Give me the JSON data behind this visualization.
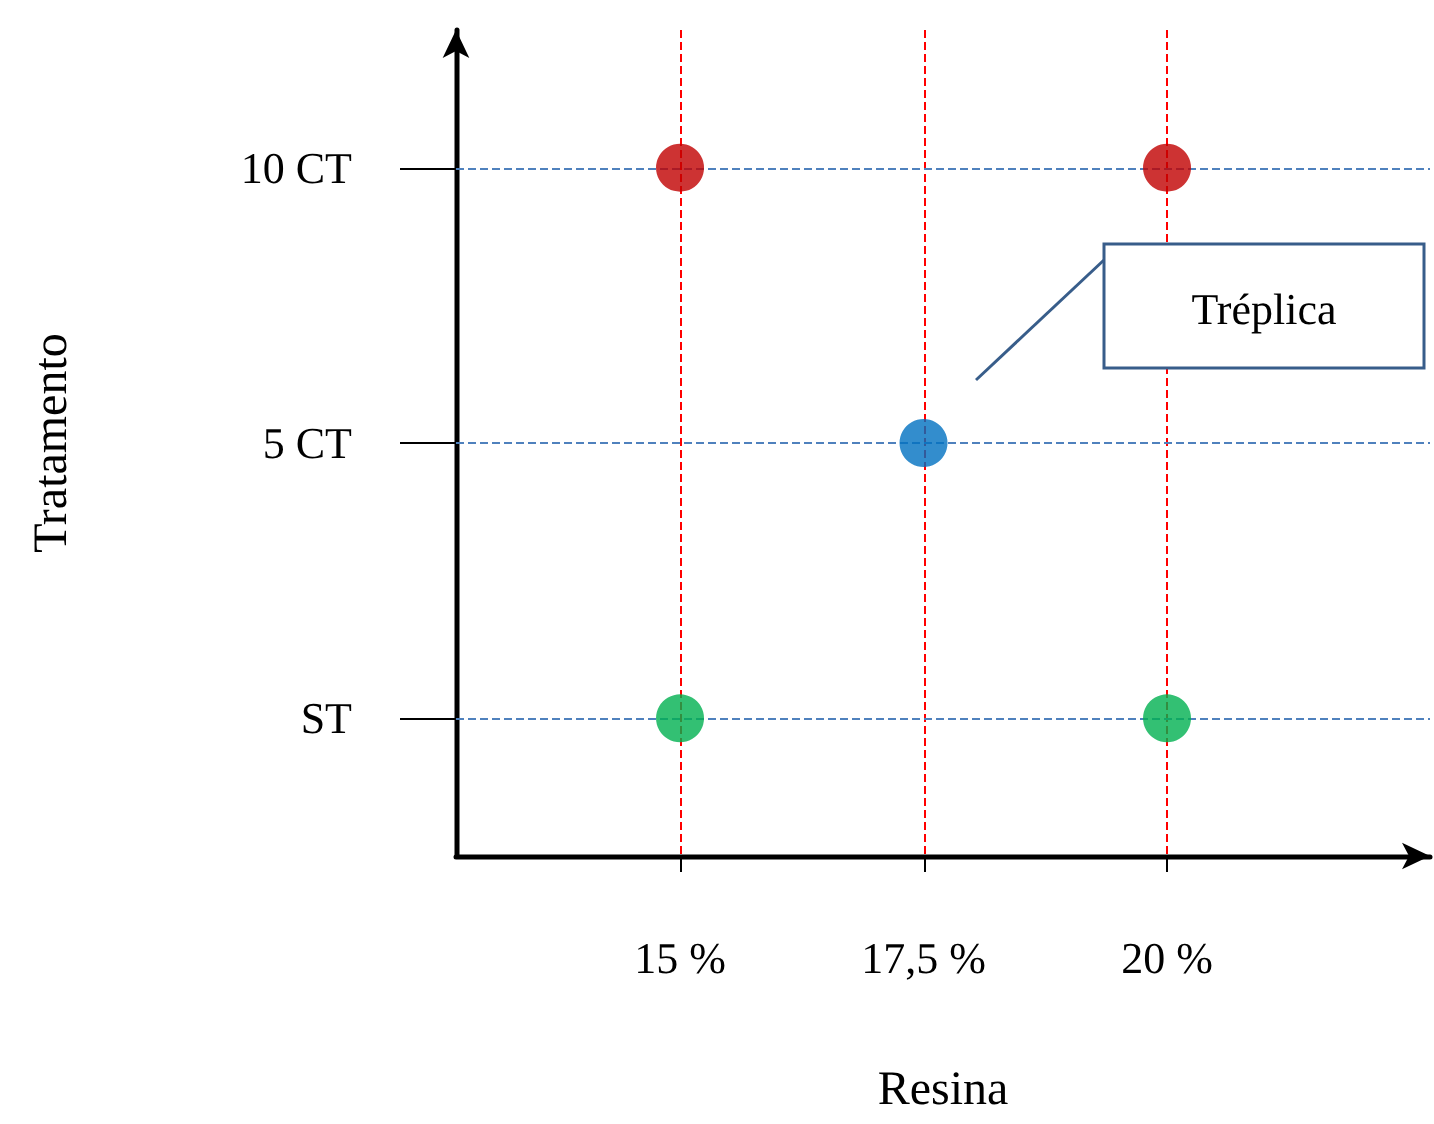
{
  "chart_data": {
    "type": "scatter",
    "orientation": "horizontal",
    "xlabel": "Resina",
    "ylabel": "Tratamento",
    "categories": [
      "10 CT",
      "5 CT",
      "ST"
    ],
    "xlim": [
      12.7,
      22.7
    ],
    "xticks": [
      {
        "value": 15,
        "label": "15 %"
      },
      {
        "value": 17.5,
        "label": "17,5 %"
      },
      {
        "value": 20,
        "label": "20 %"
      }
    ],
    "series": [
      {
        "colors": [
          "#c00000",
          "#0070c0",
          "#00b050"
        ],
        "values": [
          15,
          17.5,
          15
        ]
      },
      {
        "colors": [
          "#c00000",
          null,
          "#00b050"
        ],
        "values": [
          20,
          null,
          20
        ]
      }
    ],
    "marker": "circle",
    "grid": false,
    "annotations": [
      "Tréplica"
    ],
    "ref_lines": [
      {
        "axis": "x",
        "value": 15,
        "label": null,
        "color": "#ff0000",
        "line_style": "dashed"
      },
      {
        "axis": "x",
        "value": 17.5,
        "label": null,
        "color": "#ff0000",
        "line_style": "dashed"
      },
      {
        "axis": "x",
        "value": 20,
        "label": null,
        "color": "#ff0000",
        "line_style": "dashed"
      },
      {
        "axis": "y",
        "value": "10 CT",
        "label": null,
        "color": "#4f81bd",
        "line_style": "dashed"
      },
      {
        "axis": "y",
        "value": "5 CT",
        "label": null,
        "color": "#4f81bd",
        "line_style": "dashed"
      },
      {
        "axis": "y",
        "value": "ST",
        "label": null,
        "color": "#4f81bd",
        "line_style": "dashed"
      }
    ]
  }
}
